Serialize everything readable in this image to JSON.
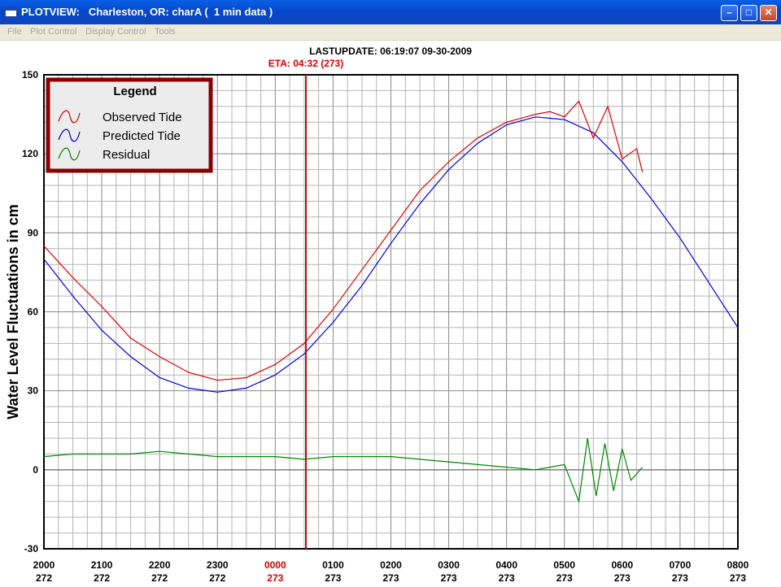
{
  "window": {
    "title": "PLOTVIEW:   Charleston, OR: charA (  1 min data )",
    "app_icon": "window-icon",
    "controls": [
      "minimize-icon",
      "maximize-icon",
      "close-icon"
    ]
  },
  "menu": {
    "items": [
      "File",
      "Plot Control",
      "Display Control",
      "Tools"
    ]
  },
  "colors": {
    "titlebar": "#0548c9",
    "observed": "#dd0000",
    "predicted": "#0000dd",
    "residual": "#008800",
    "eta_line": "#dd0000",
    "legend_border": "#8b0000",
    "grid": "#b4b4b4"
  },
  "chart_data": {
    "type": "line",
    "header": "LASTUPDATE: 06:19:07  09-30-2009",
    "marker": {
      "label": "ETA: 04:32 (273)",
      "x": 4.53
    },
    "ylabel": "Water Level Fluctuations in cm",
    "ylim": [
      -30,
      150
    ],
    "yticks": [
      -30,
      0,
      30,
      60,
      90,
      120,
      150
    ],
    "xlim": [
      0,
      12
    ],
    "xticks": [
      {
        "time": "2000",
        "day": "272"
      },
      {
        "time": "2100",
        "day": "272"
      },
      {
        "time": "2200",
        "day": "272"
      },
      {
        "time": "2300",
        "day": "272"
      },
      {
        "time": "0000",
        "day": "273",
        "highlight": true
      },
      {
        "time": "0100",
        "day": "273"
      },
      {
        "time": "0200",
        "day": "273"
      },
      {
        "time": "0300",
        "day": "273"
      },
      {
        "time": "0400",
        "day": "273"
      },
      {
        "time": "0500",
        "day": "273"
      },
      {
        "time": "0600",
        "day": "273"
      },
      {
        "time": "0700",
        "day": "273"
      },
      {
        "time": "0800",
        "day": "273"
      }
    ],
    "grid": true,
    "legend": {
      "title": "Legend",
      "position": "top-left",
      "entries": [
        "Observed Tide",
        "Predicted Tide",
        "Residual"
      ]
    },
    "series": [
      {
        "name": "Predicted Tide",
        "x": [
          0,
          0.5,
          1,
          1.5,
          2,
          2.5,
          3,
          3.5,
          4,
          4.5,
          5,
          5.5,
          6,
          6.5,
          7,
          7.5,
          8,
          8.5,
          9,
          9.5,
          10,
          10.5,
          11,
          11.5,
          12
        ],
        "y": [
          80,
          66,
          53,
          43,
          35,
          31,
          29.5,
          31,
          36,
          44,
          56,
          70,
          86,
          101,
          114,
          124,
          131,
          134,
          133,
          128,
          117,
          103,
          88,
          71,
          54
        ]
      },
      {
        "name": "Observed Tide",
        "x": [
          0,
          0.5,
          1,
          1.5,
          2,
          2.5,
          3,
          3.5,
          4,
          4.5,
          5,
          5.5,
          6,
          6.5,
          7,
          7.5,
          8,
          8.5,
          8.75,
          9,
          9.25,
          9.5,
          9.75,
          10,
          10.25,
          10.35
        ],
        "y": [
          85,
          73,
          62,
          50,
          43,
          37,
          34,
          35,
          40,
          48,
          61,
          76,
          91,
          106,
          117,
          126,
          132,
          135,
          136,
          134,
          140,
          126,
          138,
          118,
          122,
          113
        ]
      },
      {
        "name": "Residual",
        "x": [
          0,
          0.5,
          1,
          1.5,
          2,
          2.5,
          3,
          3.5,
          4,
          4.5,
          5,
          5.5,
          6,
          6.5,
          7,
          7.5,
          8,
          8.5,
          8.75,
          9,
          9.25,
          9.4,
          9.55,
          9.7,
          9.85,
          10,
          10.15,
          10.35
        ],
        "y": [
          5,
          6,
          6,
          6,
          7,
          6,
          5,
          5,
          5,
          4,
          5,
          5,
          5,
          4,
          3,
          2,
          1,
          0,
          1,
          2,
          -12,
          12,
          -10,
          10,
          -8,
          8,
          -4,
          1
        ]
      }
    ]
  }
}
